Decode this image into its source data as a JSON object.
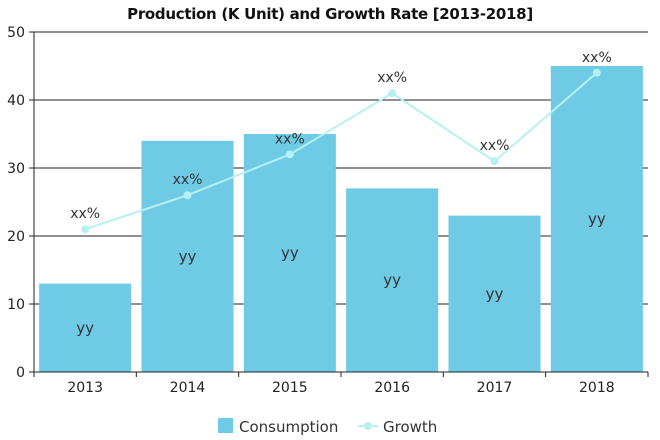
{
  "chart_data": {
    "type": "bar",
    "title": "Production (K Unit) and Growth Rate [2013-2018]",
    "xlabel": "",
    "ylabel": "",
    "categories": [
      "2013",
      "2014",
      "2015",
      "2016",
      "2017",
      "2018"
    ],
    "ylim": [
      0,
      50
    ],
    "yticks": [
      0,
      10,
      20,
      30,
      40,
      50
    ],
    "grid": true,
    "legend_position": "bottom",
    "series": [
      {
        "name": "Consumption",
        "type": "bar",
        "color": "#6fcbe5",
        "values": [
          13,
          34,
          35,
          27,
          23,
          45
        ],
        "labels": [
          "yy",
          "yy",
          "yy",
          "yy",
          "yy",
          "yy"
        ]
      },
      {
        "name": "Growth",
        "type": "line",
        "color": "#b6f0f2",
        "values": [
          21,
          26,
          32,
          41,
          31,
          44
        ],
        "labels": [
          "xx%",
          "xx%",
          "xx%",
          "xx%",
          "xx%",
          "xx%"
        ]
      }
    ]
  }
}
